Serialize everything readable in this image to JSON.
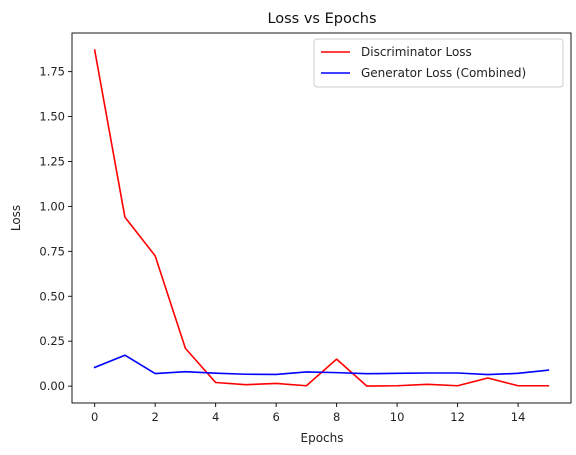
{
  "chart_data": {
    "type": "line",
    "title": "Loss vs Epochs",
    "xlabel": "Epochs",
    "ylabel": "Loss",
    "xlim": [
      -0.75,
      15.75
    ],
    "ylim": [
      -0.094,
      1.965
    ],
    "xticks": [
      0,
      2,
      4,
      6,
      8,
      10,
      12,
      14
    ],
    "xtick_labels": [
      "0",
      "2",
      "4",
      "6",
      "8",
      "10",
      "12",
      "14"
    ],
    "yticks": [
      0.0,
      0.25,
      0.5,
      0.75,
      1.0,
      1.25,
      1.5,
      1.75
    ],
    "ytick_labels": [
      "0.00",
      "0.25",
      "0.50",
      "0.75",
      "1.00",
      "1.25",
      "1.50",
      "1.75"
    ],
    "grid": false,
    "legend_position": "top-right",
    "x": [
      0,
      1,
      2,
      3,
      4,
      5,
      6,
      7,
      8,
      9,
      10,
      11,
      12,
      13,
      14,
      15
    ],
    "series": [
      {
        "name": "Discriminator Loss",
        "color": "#ff0000",
        "values": [
          1.87,
          0.94,
          0.725,
          0.21,
          0.02,
          0.008,
          0.015,
          0.002,
          0.15,
          0.0,
          0.002,
          0.01,
          0.002,
          0.045,
          0.002,
          0.002
        ]
      },
      {
        "name": "Generator Loss (Combined)",
        "color": "#0000ff",
        "values": [
          0.104,
          0.172,
          0.07,
          0.08,
          0.072,
          0.066,
          0.065,
          0.079,
          0.075,
          0.069,
          0.071,
          0.073,
          0.073,
          0.064,
          0.071,
          0.089
        ]
      }
    ]
  }
}
